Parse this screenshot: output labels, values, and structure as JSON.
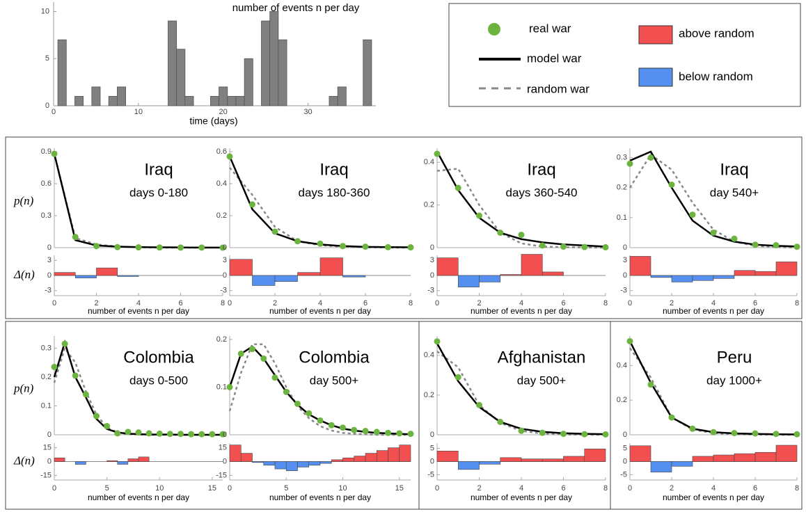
{
  "chart_data": [
    {
      "type": "bar",
      "title": "number of events n per day",
      "xlabel": "time (days)",
      "color": "#808080",
      "x": [
        1,
        3,
        5,
        7,
        8,
        14,
        15,
        16,
        19,
        20,
        21,
        22,
        23,
        25,
        26,
        27,
        33,
        34,
        37
      ],
      "values": [
        7,
        1,
        2,
        1,
        2,
        9,
        6,
        1,
        1,
        2,
        1,
        1,
        5,
        9,
        10,
        7,
        1,
        2,
        7
      ],
      "xlim": [
        0,
        38
      ],
      "xticks": [
        0,
        10,
        20,
        30
      ],
      "ylim": [
        0,
        11
      ],
      "yticks": [
        0,
        5,
        10
      ]
    },
    {
      "type": "distribution",
      "title": "Iraq",
      "subtitle": "days 0-180",
      "ylabel": "p(n)",
      "delta_label": "Δ(n)",
      "xlabel": "number of events n per day",
      "x": [
        0,
        1,
        2,
        3,
        4,
        5,
        6,
        7,
        8
      ],
      "xlim": [
        0,
        8
      ],
      "xticks": [
        0,
        2,
        4,
        6,
        8
      ],
      "ylim": [
        0,
        0.9
      ],
      "yticks": [
        0,
        0.3,
        0.6,
        0.9
      ],
      "series": [
        {
          "name": "real war",
          "color": "#6db33f",
          "values": [
            0.88,
            0.1,
            0.015,
            0.005,
            0.003,
            0.002,
            0.001,
            0.001,
            0
          ]
        },
        {
          "name": "model war",
          "color": "#000000",
          "values": [
            0.88,
            0.07,
            0.02,
            0.01,
            0.005,
            0.003,
            0.002,
            0.001,
            0.001
          ]
        },
        {
          "name": "random war",
          "color": "#888888",
          "values": [
            0.88,
            0.09,
            0.03,
            0.01,
            0.003,
            0.001,
            0,
            0,
            0
          ]
        }
      ],
      "delta": {
        "values": [
          0.6,
          -0.5,
          1.5,
          -0.2,
          0,
          0,
          0,
          0
        ],
        "ylim": [
          -4,
          4
        ],
        "yticks": [
          -3,
          0,
          3
        ],
        "above": {
          "name": "above random",
          "color": "#f25050"
        },
        "below": {
          "name": "below random",
          "color": "#5590f0"
        }
      }
    },
    {
      "type": "distribution",
      "title": "Iraq",
      "subtitle": "days 180-360",
      "xlabel": "number of events n per day",
      "x": [
        0,
        1,
        2,
        3,
        4,
        5,
        6,
        7,
        8
      ],
      "xlim": [
        0,
        8
      ],
      "xticks": [
        0,
        2,
        4,
        6,
        8
      ],
      "ylim": [
        0,
        0.6
      ],
      "yticks": [
        0,
        0.2,
        0.4,
        0.6
      ],
      "series": [
        {
          "color": "#6db33f",
          "values": [
            0.57,
            0.27,
            0.1,
            0.04,
            0.025,
            0.01,
            0.006,
            0.003,
            0.002
          ]
        },
        {
          "color": "#000000",
          "values": [
            0.57,
            0.24,
            0.09,
            0.04,
            0.02,
            0.01,
            0.005,
            0.003,
            0.002
          ]
        },
        {
          "color": "#888888",
          "values": [
            0.5,
            0.33,
            0.13,
            0.04,
            0.015,
            0.006,
            0.002,
            0.001,
            0
          ]
        }
      ],
      "delta": {
        "values": [
          3.2,
          -2,
          -1.2,
          0.6,
          3.5,
          -0.3,
          0,
          0
        ],
        "ylim": [
          -4,
          4
        ],
        "yticks": [
          -3,
          0,
          3
        ],
        "above": {
          "color": "#f25050"
        },
        "below": {
          "color": "#5590f0"
        }
      }
    },
    {
      "type": "distribution",
      "title": "Iraq",
      "subtitle": "days 360-540",
      "xlabel": "number of events n per day",
      "x": [
        0,
        1,
        2,
        3,
        4,
        5,
        6,
        7,
        8
      ],
      "xlim": [
        0,
        8
      ],
      "xticks": [
        0,
        2,
        4,
        6,
        8
      ],
      "ylim": [
        0,
        0.45
      ],
      "yticks": [
        0,
        0.2,
        0.4
      ],
      "series": [
        {
          "color": "#6db33f",
          "values": [
            0.44,
            0.28,
            0.15,
            0.07,
            0.06,
            0.01,
            0.005,
            0.003,
            0.002
          ]
        },
        {
          "color": "#000000",
          "values": [
            0.45,
            0.27,
            0.14,
            0.07,
            0.04,
            0.025,
            0.015,
            0.01,
            0.005
          ]
        },
        {
          "color": "#888888",
          "values": [
            0.36,
            0.37,
            0.2,
            0.07,
            0.02,
            0.005,
            0.002,
            0.001,
            0
          ]
        }
      ],
      "delta": {
        "values": [
          3.5,
          -2.3,
          -1.3,
          0.2,
          4.2,
          0.7,
          0,
          0
        ],
        "ylim": [
          -4,
          4
        ],
        "yticks": [
          -3,
          0,
          3
        ],
        "above": {
          "color": "#f25050"
        },
        "below": {
          "color": "#5590f0"
        }
      }
    },
    {
      "type": "distribution",
      "title": "Iraq",
      "subtitle": "day 540+",
      "xlabel": "number of events n per day",
      "x": [
        0,
        1,
        2,
        3,
        4,
        5,
        6,
        7,
        8
      ],
      "xlim": [
        0,
        8
      ],
      "xticks": [
        0,
        2,
        4,
        6,
        8
      ],
      "ylim": [
        0,
        0.32
      ],
      "yticks": [
        0,
        0.1,
        0.2,
        0.3
      ],
      "series": [
        {
          "color": "#6db33f",
          "values": [
            0.28,
            0.3,
            0.21,
            0.11,
            0.05,
            0.03,
            0.01,
            0.008,
            0.003
          ]
        },
        {
          "color": "#000000",
          "values": [
            0.29,
            0.32,
            0.2,
            0.09,
            0.04,
            0.02,
            0.01,
            0.006,
            0.004
          ]
        },
        {
          "color": "#888888",
          "values": [
            0.2,
            0.31,
            0.26,
            0.15,
            0.06,
            0.02,
            0.006,
            0.002,
            0
          ]
        }
      ],
      "delta": {
        "values": [
          3.8,
          -0.4,
          -1.3,
          -1,
          -0.6,
          1,
          0.8,
          2.7
        ],
        "ylim": [
          -4,
          4
        ],
        "yticks": [
          -3,
          0,
          3
        ],
        "above": {
          "color": "#f25050"
        },
        "below": {
          "color": "#5590f0"
        }
      }
    },
    {
      "type": "distribution",
      "title": "Colombia",
      "subtitle": "days 0-500",
      "ylabel": "p(n)",
      "delta_label": "Δ(n)",
      "xlabel": "number of events n per day",
      "x": [
        0,
        1,
        2,
        3,
        4,
        5,
        6,
        7,
        8,
        9,
        10,
        11,
        12,
        13,
        14,
        15,
        16
      ],
      "xlim": [
        0,
        16
      ],
      "xticks": [
        0,
        5,
        10,
        15
      ],
      "ylim": [
        0,
        0.33
      ],
      "yticks": [
        0,
        0.1,
        0.2,
        0.3
      ],
      "series": [
        {
          "color": "#6db33f",
          "values": [
            0.235,
            0.315,
            0.205,
            0.14,
            0.065,
            0.03,
            0.005,
            0.01,
            0.008,
            0.005,
            0.004,
            0.003,
            0.003,
            0.002,
            0.002,
            0.002,
            0.002
          ]
        },
        {
          "color": "#000000",
          "values": [
            0.2,
            0.32,
            0.2,
            0.13,
            0.055,
            0.02,
            0.008,
            0.004,
            0.002,
            0.001,
            0.001,
            0.001,
            0,
            0,
            0,
            0,
            0
          ]
        },
        {
          "color": "#888888",
          "values": [
            0.18,
            0.3,
            0.25,
            0.15,
            0.07,
            0.025,
            0.008,
            0.002,
            0.001,
            0,
            0,
            0,
            0,
            0,
            0,
            0,
            0
          ]
        }
      ],
      "delta": {
        "values": [
          4,
          0,
          -3,
          0,
          0,
          1,
          -3,
          3,
          5,
          0,
          0,
          0,
          0,
          0,
          0,
          0
        ],
        "ylim": [
          -20,
          20
        ],
        "yticks": [
          -15,
          0,
          15
        ],
        "above": {
          "color": "#f25050"
        },
        "below": {
          "color": "#5590f0"
        }
      }
    },
    {
      "type": "distribution",
      "title": "Colombia",
      "subtitle": "day 500+",
      "xlabel": "number of events n per day",
      "x": [
        0,
        1,
        2,
        3,
        4,
        5,
        6,
        7,
        8,
        9,
        10,
        11,
        12,
        13,
        14,
        15,
        16
      ],
      "xlim": [
        0,
        16
      ],
      "xticks": [
        0,
        5,
        10,
        15
      ],
      "ylim": [
        0,
        0.2
      ],
      "yticks": [
        0,
        0.1,
        0.2
      ],
      "series": [
        {
          "color": "#6db33f",
          "values": [
            0.1,
            0.17,
            0.18,
            0.16,
            0.12,
            0.09,
            0.065,
            0.045,
            0.03,
            0.02,
            0.015,
            0.01,
            0.008,
            0.006,
            0.004,
            0.003,
            0.002
          ]
        },
        {
          "color": "#000000",
          "values": [
            0.1,
            0.17,
            0.185,
            0.16,
            0.125,
            0.09,
            0.063,
            0.043,
            0.03,
            0.02,
            0.013,
            0.009,
            0.006,
            0.004,
            0.003,
            0.002,
            0.001
          ]
        },
        {
          "color": "#888888",
          "values": [
            0.05,
            0.13,
            0.19,
            0.19,
            0.15,
            0.1,
            0.06,
            0.035,
            0.018,
            0.009,
            0.004,
            0.002,
            0.001,
            0,
            0,
            0,
            0
          ]
        }
      ],
      "delta": {
        "values": [
          18,
          9,
          -1,
          -4,
          -8,
          -10,
          -6,
          -4,
          -2,
          2,
          4,
          6,
          9,
          12,
          15,
          18
        ],
        "ylim": [
          -20,
          20
        ],
        "yticks": [
          -15,
          0,
          15
        ],
        "above": {
          "color": "#f25050"
        },
        "below": {
          "color": "#5590f0"
        }
      }
    },
    {
      "type": "distribution",
      "title": "Afghanistan",
      "subtitle": "day 500+",
      "xlabel": "number of events n per day",
      "x": [
        0,
        1,
        2,
        3,
        4,
        5,
        6,
        7,
        8
      ],
      "xlim": [
        0,
        8
      ],
      "xticks": [
        0,
        2,
        4,
        6,
        8
      ],
      "ylim": [
        0,
        0.48
      ],
      "yticks": [
        0,
        0.2,
        0.4
      ],
      "series": [
        {
          "color": "#6db33f",
          "values": [
            0.47,
            0.29,
            0.15,
            0.065,
            0.02,
            0.01,
            0.005,
            0.003,
            0.002
          ]
        },
        {
          "color": "#000000",
          "values": [
            0.46,
            0.27,
            0.14,
            0.065,
            0.03,
            0.015,
            0.008,
            0.005,
            0.003
          ]
        },
        {
          "color": "#888888",
          "values": [
            0.42,
            0.34,
            0.15,
            0.06,
            0.02,
            0.006,
            0.002,
            0,
            0
          ]
        }
      ],
      "delta": {
        "values": [
          4,
          -3,
          -1,
          1.5,
          1,
          1,
          2,
          4.8
        ],
        "ylim": [
          -7,
          7
        ],
        "yticks": [
          -5,
          0,
          5
        ],
        "above": {
          "color": "#f25050"
        },
        "below": {
          "color": "#5590f0"
        }
      }
    },
    {
      "type": "distribution",
      "title": "Peru",
      "subtitle": "day 1000+",
      "xlabel": "number of events n per day",
      "x": [
        0,
        1,
        2,
        3,
        4,
        5,
        6,
        7,
        8
      ],
      "xlim": [
        0,
        8
      ],
      "xticks": [
        0,
        2,
        4,
        6,
        8
      ],
      "ylim": [
        0,
        0.55
      ],
      "yticks": [
        0,
        0.2,
        0.4
      ],
      "series": [
        {
          "color": "#6db33f",
          "values": [
            0.54,
            0.29,
            0.1,
            0.035,
            0.015,
            0.01,
            0.008,
            0.005,
            0.003
          ]
        },
        {
          "color": "#000000",
          "values": [
            0.54,
            0.3,
            0.1,
            0.035,
            0.015,
            0.008,
            0.005,
            0.003,
            0.002
          ]
        },
        {
          "color": "#888888",
          "values": [
            0.5,
            0.33,
            0.1,
            0.03,
            0.01,
            0.003,
            0.001,
            0,
            0
          ]
        }
      ],
      "delta": {
        "values": [
          6,
          -4,
          -1.8,
          2,
          2.5,
          3,
          3.5,
          6.2
        ],
        "ylim": [
          -7,
          7
        ],
        "yticks": [
          -5,
          0,
          5
        ],
        "above": {
          "color": "#f25050"
        },
        "below": {
          "color": "#5590f0"
        }
      }
    }
  ]
}
